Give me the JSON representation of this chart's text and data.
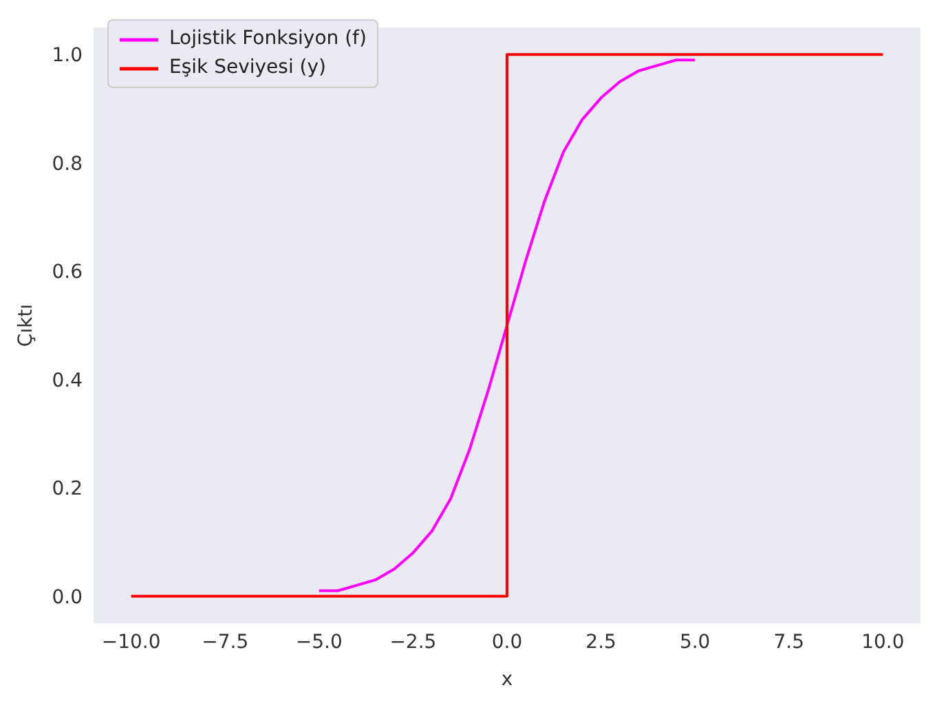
{
  "chart_data": {
    "type": "line",
    "xlabel": "x",
    "ylabel": "Çıktı",
    "xlim": [
      -11,
      11
    ],
    "ylim": [
      -0.05,
      1.05
    ],
    "xticks": [
      {
        "value": -10,
        "label": "−10.0"
      },
      {
        "value": -7.5,
        "label": "−7.5"
      },
      {
        "value": -5,
        "label": "−5.0"
      },
      {
        "value": -2.5,
        "label": "−2.5"
      },
      {
        "value": 0,
        "label": "0.0"
      },
      {
        "value": 2.5,
        "label": "2.5"
      },
      {
        "value": 5,
        "label": "5.0"
      },
      {
        "value": 7.5,
        "label": "7.5"
      },
      {
        "value": 10,
        "label": "10.0"
      }
    ],
    "yticks": [
      {
        "value": 0,
        "label": "0.0"
      },
      {
        "value": 0.2,
        "label": "0.2"
      },
      {
        "value": 0.4,
        "label": "0.4"
      },
      {
        "value": 0.6,
        "label": "0.6"
      },
      {
        "value": 0.8,
        "label": "0.8"
      },
      {
        "value": 1,
        "label": "1.0"
      }
    ],
    "legend": "top left",
    "line_style": "solid",
    "marker": "none",
    "series": [
      {
        "name": "Lojistik Fonksiyon (f)",
        "color": "#ff00ff",
        "x": [
          -5,
          -4.5,
          -4,
          -3.5,
          -3,
          -2.5,
          -2,
          -1.5,
          -1,
          -0.5,
          0,
          0.5,
          1,
          1.5,
          2,
          2.5,
          3,
          3.5,
          4,
          4.5,
          5
        ],
        "values": [
          0.01,
          0.01,
          0.02,
          0.03,
          0.05,
          0.08,
          0.12,
          0.18,
          0.27,
          0.38,
          0.5,
          0.62,
          0.73,
          0.82,
          0.88,
          0.92,
          0.95,
          0.97,
          0.98,
          0.99,
          0.99
        ]
      },
      {
        "name": "Eşik Seviyesi (y)",
        "color": "#ff0000",
        "x": [
          -10,
          0,
          0,
          10
        ],
        "values": [
          0,
          0,
          1,
          1
        ]
      }
    ]
  }
}
